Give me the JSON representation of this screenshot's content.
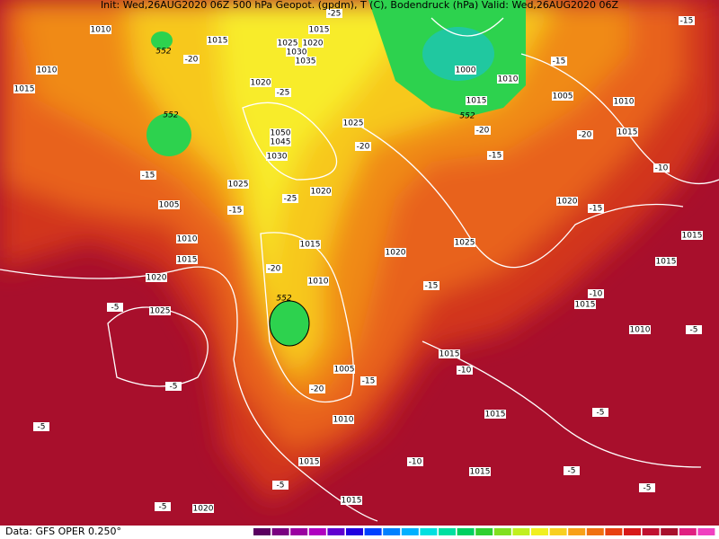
{
  "header": {
    "title": "Init: Wed,26AUG2020 06Z   500 hPa Geopot. (gpdm), T (C), Bodendruck (hPa)   Valid: Wed,26AUG2020 06Z"
  },
  "footer": {
    "source": "Data: GFS OPER 0.250°"
  },
  "map": {
    "pressure_labels": [
      "1010",
      "1015",
      "1015",
      "1025",
      "1020",
      "1030",
      "1035",
      "1020",
      "1050",
      "1045",
      "1030",
      "1025",
      "1025",
      "1020",
      "1010",
      "1015",
      "1005",
      "1010",
      "1015",
      "1020",
      "1025",
      "1015",
      "1010",
      "1020",
      "1025",
      "1000",
      "1010",
      "1015",
      "1005",
      "1010",
      "1015",
      "1020",
      "1015",
      "1015",
      "1015",
      "1010",
      "1015",
      "1005",
      "1010",
      "1015",
      "1015",
      "1015",
      "1015",
      "1020"
    ],
    "temperature_labels": [
      "-20",
      "-25",
      "-20",
      "-15",
      "-15",
      "-25",
      "-20",
      "-20",
      "-15",
      "-15",
      "-15",
      "-20",
      "-15",
      "-20",
      "-10",
      "-15",
      "-10",
      "-5",
      "-10",
      "-5",
      "-5",
      "-5",
      "-5",
      "-5",
      "-10",
      "-5",
      "-5",
      "-5",
      "-15",
      "-25"
    ],
    "geopotential_labels": [
      "552",
      "552",
      "552",
      "552"
    ]
  }
}
